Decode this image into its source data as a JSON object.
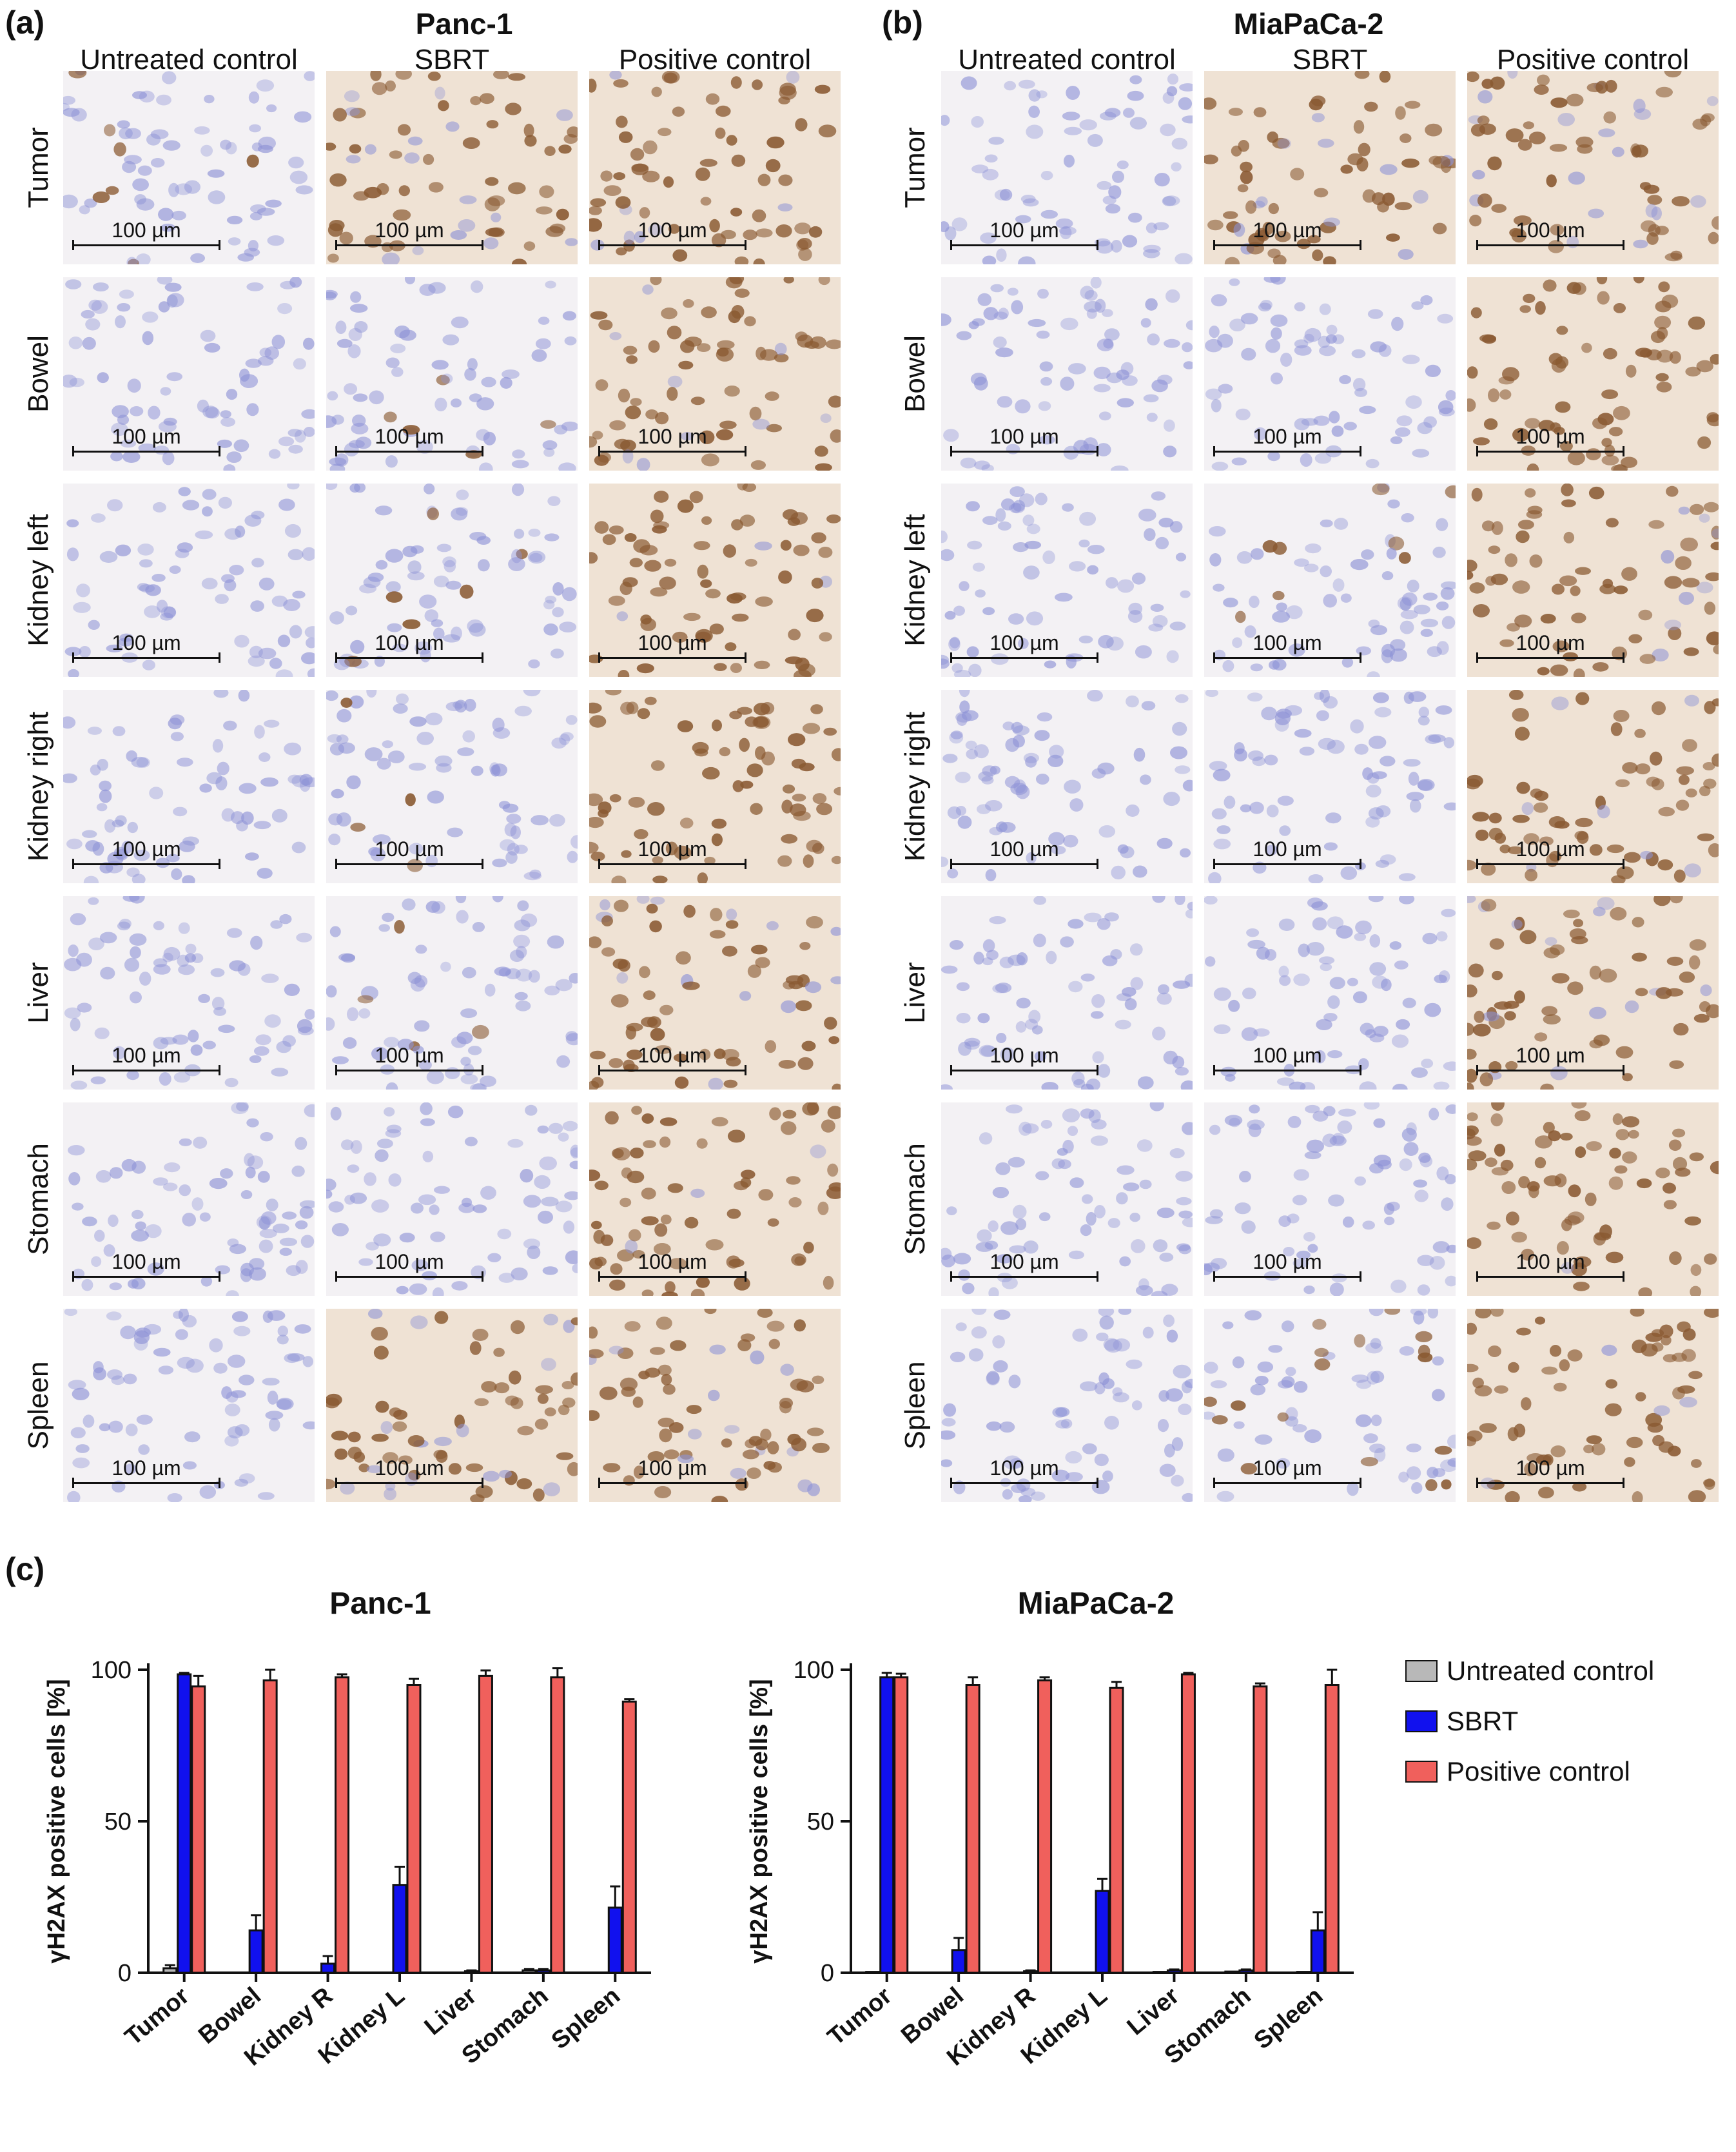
{
  "panel_a": {
    "letter": "(a)",
    "title": "Panc-1",
    "columns": [
      "Untreated control",
      "SBRT",
      "Positive control"
    ],
    "rows": [
      "Tumor",
      "Bowel",
      "Kidney left",
      "Kidney right",
      "Liver",
      "Stomach",
      "Spleen"
    ]
  },
  "panel_b": {
    "letter": "(b)",
    "title": "MiaPaCa-2",
    "columns": [
      "Untreated control",
      "SBRT",
      "Positive control"
    ],
    "rows": [
      "Tumor",
      "Bowel",
      "Kidney left",
      "Kidney right",
      "Liver",
      "Stomach",
      "Spleen"
    ]
  },
  "scale_bar_label": "100 µm",
  "panel_c": {
    "letter": "(c)"
  },
  "colors": {
    "untreated": "#b8b8b8",
    "sbrt": "#1111ee",
    "positive": "#f0605c",
    "stain_blue": "#8d92d6",
    "stain_brown": "#8a5a32",
    "tissue_bg": "#f4efe9"
  },
  "legend": [
    {
      "label": "Untreated control",
      "color": "#b8b8b8"
    },
    {
      "label": "SBRT",
      "color": "#1111ee"
    },
    {
      "label": "Positive control",
      "color": "#f0605c"
    }
  ],
  "chart_data": [
    {
      "type": "bar",
      "title": "Panc-1",
      "ylabel": "γH2AX positive cells [%]",
      "xlabel": "",
      "ylim": [
        0,
        100
      ],
      "yticks": [
        0,
        50,
        100
      ],
      "categories": [
        "Tumor",
        "Bowel",
        "Kidney R",
        "Kidney L",
        "Liver",
        "Stomach",
        "Spleen"
      ],
      "series": [
        {
          "name": "Untreated control",
          "values": [
            1.5,
            0,
            0,
            0,
            0,
            0.8,
            0
          ],
          "errors": [
            1,
            0,
            0,
            0,
            0,
            0.4,
            0
          ]
        },
        {
          "name": "SBRT",
          "values": [
            98.5,
            14,
            3,
            29,
            0.5,
            0.8,
            21.5
          ],
          "errors": [
            0.5,
            5,
            2.5,
            6,
            0.3,
            0.4,
            7
          ]
        },
        {
          "name": "Positive control",
          "values": [
            94.5,
            96.5,
            97.5,
            95,
            98,
            97.5,
            89.5
          ],
          "errors": [
            3.5,
            3.5,
            1,
            2,
            1.8,
            3,
            0.8
          ]
        }
      ]
    },
    {
      "type": "bar",
      "title": "MiaPaCa-2",
      "ylabel": "γH2AX positive cells [%]",
      "xlabel": "",
      "ylim": [
        0,
        100
      ],
      "yticks": [
        0,
        50,
        100
      ],
      "categories": [
        "Tumor",
        "Bowel",
        "Kidney R",
        "Kidney L",
        "Liver",
        "Stomach",
        "Spleen"
      ],
      "series": [
        {
          "name": "Untreated control",
          "values": [
            0.3,
            0,
            0,
            0,
            0.3,
            0.4,
            0.3
          ],
          "errors": [
            0,
            0,
            0,
            0,
            0,
            0,
            0
          ]
        },
        {
          "name": "SBRT",
          "values": [
            97.5,
            7.5,
            0.5,
            27,
            0.8,
            0.8,
            14
          ],
          "errors": [
            1.5,
            4,
            0.3,
            4,
            0.3,
            0.3,
            6
          ]
        },
        {
          "name": "Positive control",
          "values": [
            97.5,
            95,
            96.5,
            94,
            98.5,
            94.5,
            95
          ],
          "errors": [
            1.2,
            2.5,
            1,
            2,
            0.5,
            1,
            5
          ]
        }
      ]
    }
  ]
}
